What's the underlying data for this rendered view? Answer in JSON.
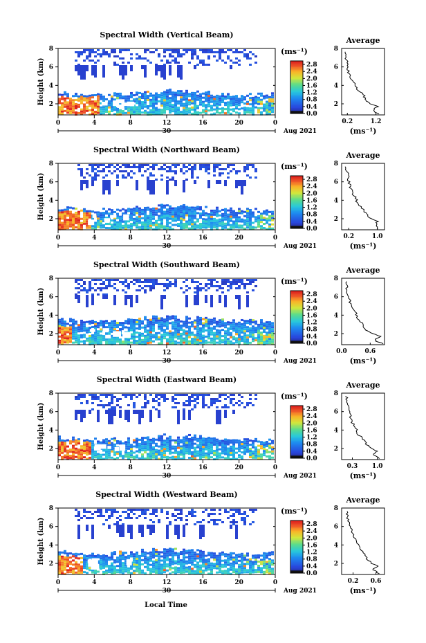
{
  "figure": {
    "xlabel_bottom": "Local Time"
  },
  "chart_data": [
    {
      "type": "heatmap",
      "title": "Spectral Width (Vertical Beam)",
      "ylabel": "Height (km)",
      "x_ticks": [
        "0",
        "4",
        "8",
        "12",
        "16",
        "20",
        "0"
      ],
      "x_range": [
        0,
        24
      ],
      "y_ticks": [
        "2",
        "4",
        "6",
        "8"
      ],
      "ylim": [
        0.8,
        8
      ],
      "date_day": "30",
      "date_month_year": "Aug 2021",
      "colorbar": {
        "unit": "(ms⁻¹)",
        "ticks": [
          "2.8",
          "2.4",
          "2.0",
          "1.6",
          "1.2",
          "0.8",
          "0.4",
          "0.0"
        ],
        "range": [
          0,
          3
        ]
      },
      "top_band_upper_km": 8,
      "lower_layer_top_km": 3.2,
      "strong_region_end_hour": 4.5,
      "average": {
        "title": "Average",
        "xlabel": "(ms⁻¹)",
        "x_ticks": [
          "0.2",
          "1.2"
        ],
        "x_tick_values": [
          0.2,
          1.2
        ],
        "xlim": [
          0,
          1.5
        ],
        "y_ticks": [
          "2",
          "4",
          "6",
          "8"
        ],
        "ylim": [
          0.8,
          8
        ],
        "profile": {
          "height_km": [
            0.9,
            1.3,
            1.7,
            2.1,
            2.5,
            3.0,
            3.6,
            4.2,
            4.8,
            5.4,
            6.0,
            6.6,
            7.2,
            7.8
          ],
          "width_ms": [
            1.3,
            1.1,
            1.25,
            0.95,
            0.85,
            0.75,
            0.55,
            0.45,
            0.32,
            0.25,
            0.2,
            0.18,
            0.15,
            0.12
          ]
        }
      }
    },
    {
      "type": "heatmap",
      "title": "Spectral Width (Northward Beam)",
      "ylabel": "Height (km)",
      "x_ticks": [
        "0",
        "4",
        "8",
        "12",
        "16",
        "20",
        "0"
      ],
      "x_range": [
        0,
        24
      ],
      "y_ticks": [
        "2",
        "4",
        "6",
        "8"
      ],
      "ylim": [
        0.8,
        8
      ],
      "date_day": "30",
      "date_month_year": "Aug 2021",
      "colorbar": {
        "unit": "(ms⁻¹)",
        "ticks": [
          "2.8",
          "2.4",
          "2.0",
          "1.6",
          "1.2",
          "0.8",
          "0.4",
          "0.0"
        ],
        "range": [
          0,
          3
        ]
      },
      "top_band_upper_km": 8,
      "lower_layer_top_km": 3.2,
      "strong_region_end_hour": 3.5,
      "average": {
        "title": "Average",
        "xlabel": "(ms⁻¹)",
        "x_ticks": [
          "0.2",
          "1.0"
        ],
        "x_tick_values": [
          0.2,
          1.0
        ],
        "xlim": [
          0,
          1.2
        ],
        "y_ticks": [
          "2",
          "4",
          "6",
          "8"
        ],
        "ylim": [
          0.8,
          8
        ],
        "profile": {
          "height_km": [
            0.9,
            1.3,
            1.7,
            2.1,
            2.5,
            3.0,
            3.6,
            4.2,
            4.8,
            5.4,
            6.0,
            6.6,
            7.2,
            7.8
          ],
          "width_ms": [
            1.05,
            0.95,
            1.0,
            0.8,
            0.7,
            0.6,
            0.45,
            0.4,
            0.3,
            0.25,
            0.2,
            0.18,
            0.15,
            0.12
          ]
        }
      }
    },
    {
      "type": "heatmap",
      "title": "Spectral Width (Southward Beam)",
      "ylabel": "Height (km)",
      "x_ticks": [
        "0",
        "4",
        "8",
        "12",
        "16",
        "20",
        "0"
      ],
      "x_range": [
        0,
        24
      ],
      "y_ticks": [
        "2",
        "4",
        "6",
        "8"
      ],
      "ylim": [
        0.8,
        8
      ],
      "date_day": "30",
      "date_month_year": "Aug 2021",
      "colorbar": {
        "unit": "(ms⁻¹)",
        "ticks": [
          "2.8",
          "2.4",
          "2.0",
          "1.6",
          "1.2",
          "0.8",
          "0.4",
          "0.0"
        ],
        "range": [
          0,
          3
        ]
      },
      "top_band_upper_km": 8,
      "lower_layer_top_km": 3.6,
      "strong_region_end_hour": 1.5,
      "average": {
        "title": "Average",
        "xlabel": "(ms⁻¹)",
        "x_ticks": [
          "0.0",
          "0.6"
        ],
        "x_tick_values": [
          0.0,
          0.6
        ],
        "xlim": [
          0,
          0.9
        ],
        "y_ticks": [
          "2",
          "4",
          "6",
          "8"
        ],
        "ylim": [
          0.8,
          8
        ],
        "profile": {
          "height_km": [
            0.9,
            1.3,
            1.7,
            2.1,
            2.5,
            3.0,
            3.6,
            4.2,
            4.8,
            5.4,
            6.0,
            6.6,
            7.2,
            7.8
          ],
          "width_ms": [
            0.85,
            0.7,
            0.8,
            0.6,
            0.5,
            0.45,
            0.35,
            0.3,
            0.22,
            0.18,
            0.15,
            0.12,
            0.1,
            0.08
          ]
        }
      }
    },
    {
      "type": "heatmap",
      "title": "Spectral Width (Eastward Beam)",
      "ylabel": "Height (km)",
      "x_ticks": [
        "0",
        "4",
        "8",
        "12",
        "16",
        "20",
        "0"
      ],
      "x_range": [
        0,
        24
      ],
      "y_ticks": [
        "2",
        "4",
        "6",
        "8"
      ],
      "ylim": [
        0.8,
        8
      ],
      "date_day": "30",
      "date_month_year": "Aug 2021",
      "colorbar": {
        "unit": "(ms⁻¹)",
        "ticks": [
          "2.8",
          "2.4",
          "2.0",
          "1.6",
          "1.2",
          "0.8",
          "0.4",
          "0.0"
        ],
        "range": [
          0,
          3
        ]
      },
      "top_band_upper_km": 8,
      "lower_layer_top_km": 3.2,
      "strong_region_end_hour": 3.5,
      "average": {
        "title": "Average",
        "xlabel": "(ms⁻¹)",
        "x_ticks": [
          "0.3",
          "1.0"
        ],
        "x_tick_values": [
          0.3,
          1.0
        ],
        "xlim": [
          0,
          1.2
        ],
        "y_ticks": [
          "2",
          "4",
          "6",
          "8"
        ],
        "ylim": [
          0.8,
          8
        ],
        "profile": {
          "height_km": [
            0.9,
            1.3,
            1.7,
            2.1,
            2.5,
            3.0,
            3.6,
            4.2,
            4.8,
            5.4,
            6.0,
            6.6,
            7.2,
            7.8
          ],
          "width_ms": [
            1.05,
            0.9,
            1.0,
            0.8,
            0.7,
            0.6,
            0.45,
            0.4,
            0.3,
            0.25,
            0.2,
            0.18,
            0.15,
            0.12
          ]
        }
      }
    },
    {
      "type": "heatmap",
      "title": "Spectral Width (Westward Beam)",
      "ylabel": "Height (km)",
      "x_ticks": [
        "0",
        "4",
        "8",
        "12",
        "16",
        "20",
        "0"
      ],
      "x_range": [
        0,
        24
      ],
      "y_ticks": [
        "2",
        "4",
        "6",
        "8"
      ],
      "ylim": [
        0.8,
        8
      ],
      "date_day": "30",
      "date_month_year": "Aug 2021",
      "colorbar": {
        "unit": "(ms⁻¹)",
        "ticks": [
          "2.8",
          "2.4",
          "2.0",
          "1.6",
          "1.2",
          "0.8",
          "0.4",
          "0.0"
        ],
        "range": [
          0,
          3
        ]
      },
      "top_band_upper_km": 8,
      "lower_layer_top_km": 3.3,
      "strong_region_end_hour": 2.5,
      "average": {
        "title": "Average",
        "xlabel": "(ms⁻¹)",
        "x_ticks": [
          "0.2",
          "0.6"
        ],
        "x_tick_values": [
          0.2,
          0.6
        ],
        "xlim": [
          0,
          0.75
        ],
        "y_ticks": [
          "2",
          "4",
          "6",
          "8"
        ],
        "ylim": [
          0.8,
          8
        ],
        "profile": {
          "height_km": [
            0.9,
            1.3,
            1.7,
            2.1,
            2.5,
            3.0,
            3.6,
            4.2,
            4.8,
            5.4,
            6.0,
            6.6,
            7.2,
            7.8
          ],
          "width_ms": [
            0.65,
            0.55,
            0.62,
            0.5,
            0.45,
            0.4,
            0.32,
            0.28,
            0.22,
            0.18,
            0.15,
            0.12,
            0.1,
            0.08
          ]
        }
      }
    }
  ]
}
